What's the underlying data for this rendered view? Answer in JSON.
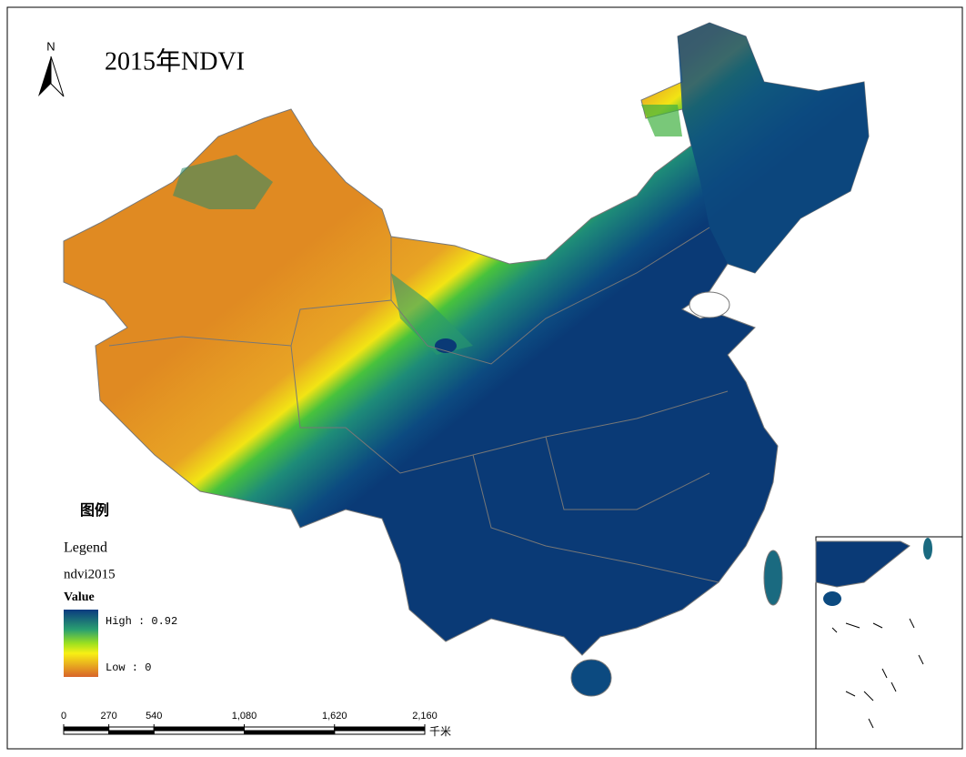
{
  "title": "2015年NDVI",
  "north_arrow": "N",
  "legend": {
    "heading": "图例",
    "title": "Legend",
    "layer": "ndvi2015",
    "field": "Value",
    "high": "High : 0.92",
    "low": "Low : 0"
  },
  "scale_bar": {
    "ticks": [
      0,
      270,
      540,
      {
        "value": 1080,
        "label": "1,080"
      },
      {
        "value": 1620,
        "label": "1,620"
      },
      {
        "value": 2160,
        "label": "2,160"
      }
    ],
    "unit": "千米"
  }
}
